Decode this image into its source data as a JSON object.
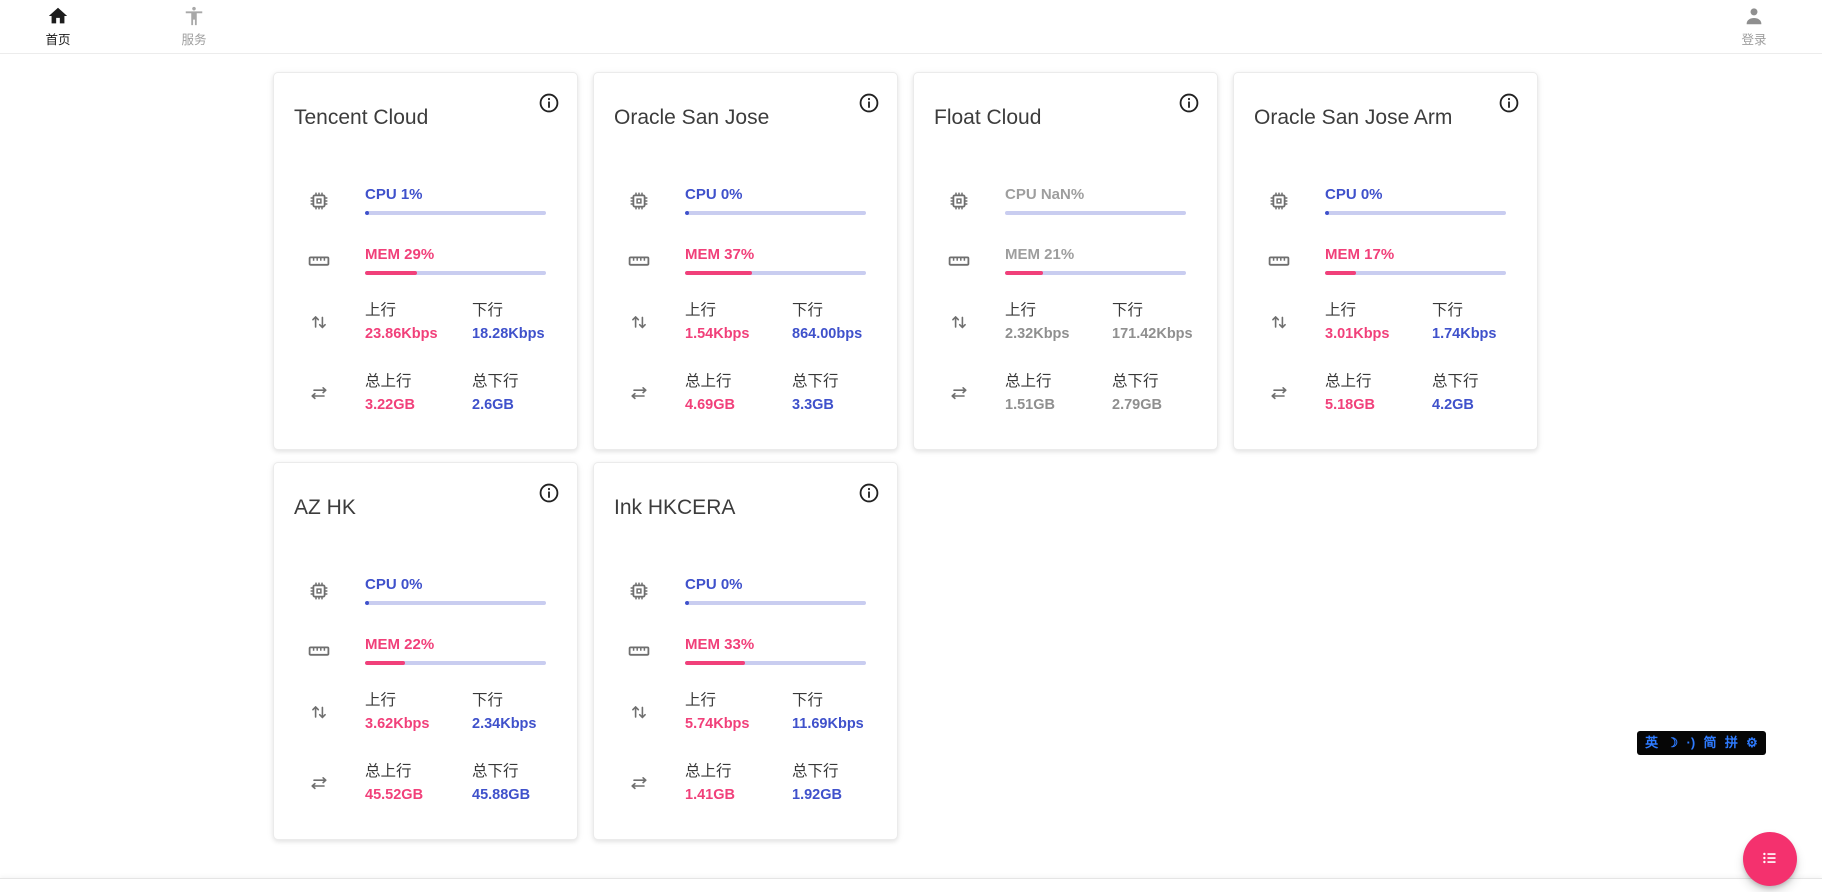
{
  "nav": {
    "home": {
      "label": "首页",
      "active": true
    },
    "services": {
      "label": "服务",
      "active": false
    },
    "login": {
      "label": "登录"
    }
  },
  "labels": {
    "upload": "上行",
    "download": "下行",
    "total_upload": "总上行",
    "total_download": "总下行"
  },
  "colors": {
    "cpu_blue": "#3f51cb",
    "mem_pink": "#f1407a",
    "bar_track": "#c9cdf0",
    "offline_gray": "#9e9e9e",
    "fab_pink": "#f4316e",
    "ime_blue": "#2e7bff"
  },
  "servers": [
    {
      "name": "Tencent Cloud",
      "cpu_label": "CPU 1%",
      "cpu_pct": 1,
      "mem_label": "MEM 29%",
      "mem_pct": 29,
      "up_speed": "23.86Kbps",
      "down_speed": "18.28Kbps",
      "total_up": "3.22GB",
      "total_down": "2.6GB",
      "offline": false
    },
    {
      "name": "Oracle San Jose",
      "cpu_label": "CPU 0%",
      "cpu_pct": 0,
      "mem_label": "MEM 37%",
      "mem_pct": 37,
      "up_speed": "1.54Kbps",
      "down_speed": "864.00bps",
      "total_up": "4.69GB",
      "total_down": "3.3GB",
      "offline": false
    },
    {
      "name": "Float Cloud",
      "cpu_label": "CPU NaN%",
      "cpu_pct": null,
      "mem_label": "MEM 21%",
      "mem_pct": 21,
      "up_speed": "2.32Kbps",
      "down_speed": "171.42Kbps",
      "total_up": "1.51GB",
      "total_down": "2.79GB",
      "offline": true
    },
    {
      "name": "Oracle San Jose Arm",
      "cpu_label": "CPU 0%",
      "cpu_pct": 0,
      "mem_label": "MEM 17%",
      "mem_pct": 17,
      "up_speed": "3.01Kbps",
      "down_speed": "1.74Kbps",
      "total_up": "5.18GB",
      "total_down": "4.2GB",
      "offline": false
    },
    {
      "name": "AZ HK",
      "cpu_label": "CPU 0%",
      "cpu_pct": 0,
      "mem_label": "MEM 22%",
      "mem_pct": 22,
      "up_speed": "3.62Kbps",
      "down_speed": "2.34Kbps",
      "total_up": "45.52GB",
      "total_down": "45.88GB",
      "offline": false
    },
    {
      "name": "Ink HKCERA",
      "cpu_label": "CPU 0%",
      "cpu_pct": 0,
      "mem_label": "MEM 33%",
      "mem_pct": 33,
      "up_speed": "5.74Kbps",
      "down_speed": "11.69Kbps",
      "total_up": "1.41GB",
      "total_down": "1.92GB",
      "offline": false
    }
  ],
  "ime_toolbar": {
    "items": [
      "英",
      "☽",
      "·)",
      "简",
      "拼",
      "⚙"
    ]
  }
}
